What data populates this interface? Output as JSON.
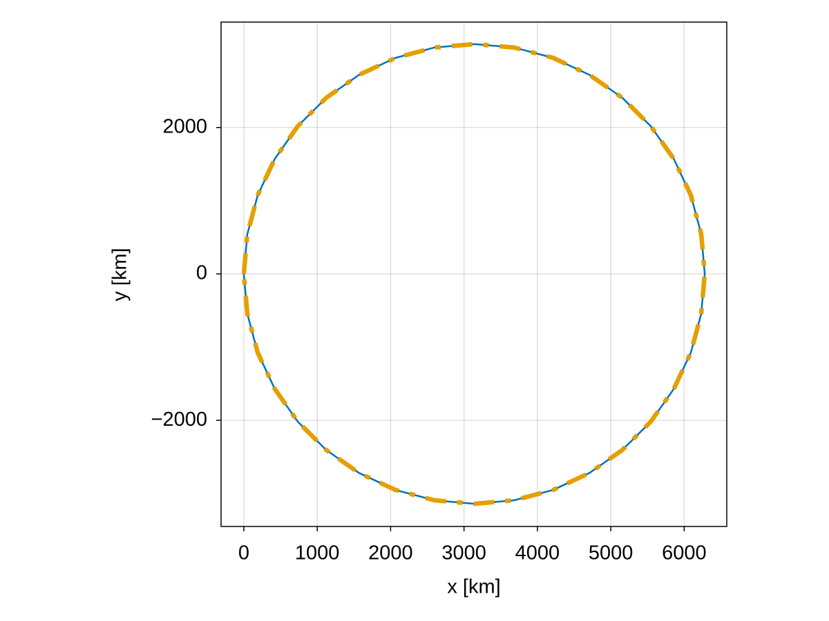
{
  "chart_data": {
    "type": "line",
    "xlabel": "x [km]",
    "ylabel": "y [km]",
    "x": [
      0,
      48,
      189,
      421,
      735,
      1122,
      1570,
      2066,
      2595,
      3140,
      3685,
      4214,
      4710,
      5158,
      5545,
      5859,
      6091,
      6232,
      6280,
      6232,
      6091,
      5859,
      5545,
      5158,
      4710,
      4214,
      3685,
      3140,
      2595,
      2066,
      1570,
      1122,
      735,
      421,
      189,
      48,
      0
    ],
    "series": [
      {
        "color": "#0072b2",
        "linestyle": "solid",
        "values": [
          0,
          545,
          1074,
          1570,
          2018,
          2405,
          2719,
          2951,
          3092,
          3140,
          3092,
          2951,
          2719,
          2405,
          2018,
          1570,
          1074,
          545,
          0,
          -545,
          -1074,
          -1570,
          -2018,
          -2405,
          -2719,
          -2951,
          -3092,
          -3140,
          -3092,
          -2951,
          -2719,
          -2405,
          -2018,
          -1570,
          -1074,
          -545,
          0
        ]
      },
      {
        "color": "#e69f00",
        "linestyle": "dashdot",
        "values": [
          0,
          545,
          1074,
          1570,
          2018,
          2405,
          2719,
          2951,
          3092,
          3140,
          3092,
          2951,
          2719,
          2405,
          2018,
          1570,
          1074,
          545,
          0,
          -545,
          -1074,
          -1570,
          -2018,
          -2405,
          -2719,
          -2951,
          -3092,
          -3140,
          -3092,
          -2951,
          -2719,
          -2405,
          -2018,
          -1570,
          -1074,
          -545,
          0
        ]
      }
    ],
    "xlim": [
      -310,
      6580
    ],
    "ylim": [
      -3450,
      3440
    ],
    "xticks": [
      0,
      1000,
      2000,
      3000,
      4000,
      5000,
      6000
    ],
    "yticks": [
      {
        "value": -2000,
        "label": "−2000"
      },
      0,
      2000
    ],
    "grid": true
  }
}
